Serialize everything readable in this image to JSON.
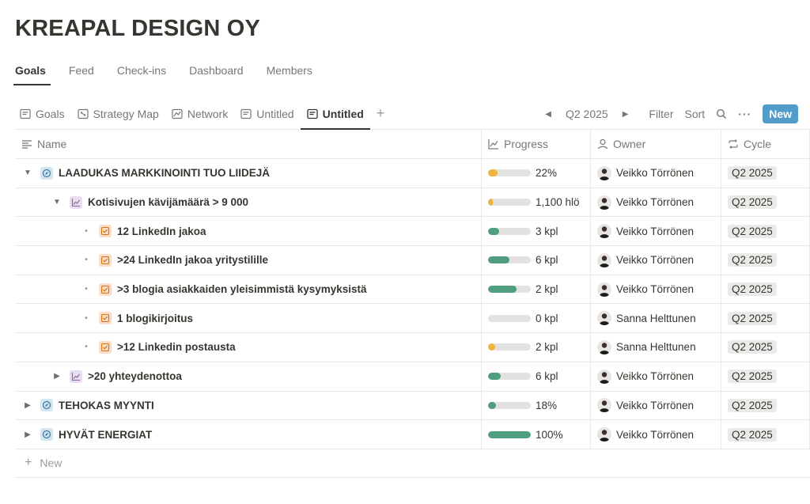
{
  "page": {
    "title": "KREAPAL DESIGN OY"
  },
  "top_tabs": [
    {
      "label": "Goals",
      "active": true
    },
    {
      "label": "Feed"
    },
    {
      "label": "Check-ins"
    },
    {
      "label": "Dashboard"
    },
    {
      "label": "Members"
    }
  ],
  "view_tabs": [
    {
      "label": "Goals",
      "icon": "table-view-icon"
    },
    {
      "label": "Strategy Map",
      "icon": "map-view-icon"
    },
    {
      "label": "Network",
      "icon": "network-view-icon"
    },
    {
      "label": "Untitled",
      "icon": "table-view-icon"
    },
    {
      "label": "Untitled",
      "icon": "table-view-icon",
      "active": true
    }
  ],
  "toolbar": {
    "cycle": "Q2 2025",
    "filter": "Filter",
    "sort": "Sort",
    "new": "New"
  },
  "columns": {
    "name": "Name",
    "progress": "Progress",
    "owner": "Owner",
    "cycle": "Cycle"
  },
  "rows": [
    {
      "name": "LAADUKAS MARKKINOINTI TUO LIIDEJÄ",
      "level": 0,
      "type": "goal",
      "toggle": "open",
      "progress_text": "22%",
      "progress_pct": 22,
      "bar_color": "#f0b43c",
      "owner": "Veikko Törrönen",
      "cycle": "Q2 2025"
    },
    {
      "name": "Kotisivujen kävijämäärä > 9 000",
      "level": 1,
      "type": "kpi",
      "toggle": "open",
      "progress_text": "1,100 hlö",
      "progress_pct": 12,
      "bar_color": "#f0b43c",
      "owner": "Veikko Törrönen",
      "cycle": "Q2 2025"
    },
    {
      "name": "12 LinkedIn jakoa",
      "level": 2,
      "type": "task",
      "toggle": "bullet",
      "progress_text": "3 kpl",
      "progress_pct": 25,
      "bar_color": "#4f9e7f",
      "owner": "Veikko Törrönen",
      "cycle": "Q2 2025"
    },
    {
      "name": ">24 LinkedIn jakoa yritystilille",
      "level": 2,
      "type": "task",
      "toggle": "bullet",
      "progress_text": "6 kpl",
      "progress_pct": 50,
      "bar_color": "#4f9e7f",
      "owner": "Veikko Törrönen",
      "cycle": "Q2 2025"
    },
    {
      "name": ">3 blogia asiakkaiden yleisimmistä kysymyksistä",
      "level": 2,
      "type": "task",
      "toggle": "bullet",
      "progress_text": "2 kpl",
      "progress_pct": 67,
      "bar_color": "#4f9e7f",
      "owner": "Veikko Törrönen",
      "cycle": "Q2 2025"
    },
    {
      "name": "1 blogikirjoitus",
      "level": 2,
      "type": "task",
      "toggle": "bullet",
      "progress_text": "0 kpl",
      "progress_pct": 0,
      "bar_color": "#4f9e7f",
      "owner": "Sanna Helttunen",
      "cycle": "Q2 2025"
    },
    {
      "name": ">12 Linkedin postausta",
      "level": 2,
      "type": "task",
      "toggle": "bullet",
      "progress_text": "2 kpl",
      "progress_pct": 17,
      "bar_color": "#f0b43c",
      "owner": "Sanna Helttunen",
      "cycle": "Q2 2025"
    },
    {
      "name": ">20 yhteydenottoa",
      "level": 1,
      "type": "kpi",
      "toggle": "closed",
      "progress_text": "6 kpl",
      "progress_pct": 30,
      "bar_color": "#4f9e7f",
      "owner": "Veikko Törrönen",
      "cycle": "Q2 2025"
    },
    {
      "name": "TEHOKAS MYYNTI",
      "level": 0,
      "type": "goal",
      "toggle": "closed",
      "progress_text": "18%",
      "progress_pct": 18,
      "bar_color": "#4f9e7f",
      "owner": "Veikko Törrönen",
      "cycle": "Q2 2025"
    },
    {
      "name": "HYVÄT ENERGIAT",
      "level": 0,
      "type": "goal",
      "toggle": "closed",
      "progress_text": "100%",
      "progress_pct": 100,
      "bar_color": "#4f9e7f",
      "owner": "Veikko Törrönen",
      "cycle": "Q2 2025"
    }
  ],
  "new_row": {
    "label": "New"
  }
}
